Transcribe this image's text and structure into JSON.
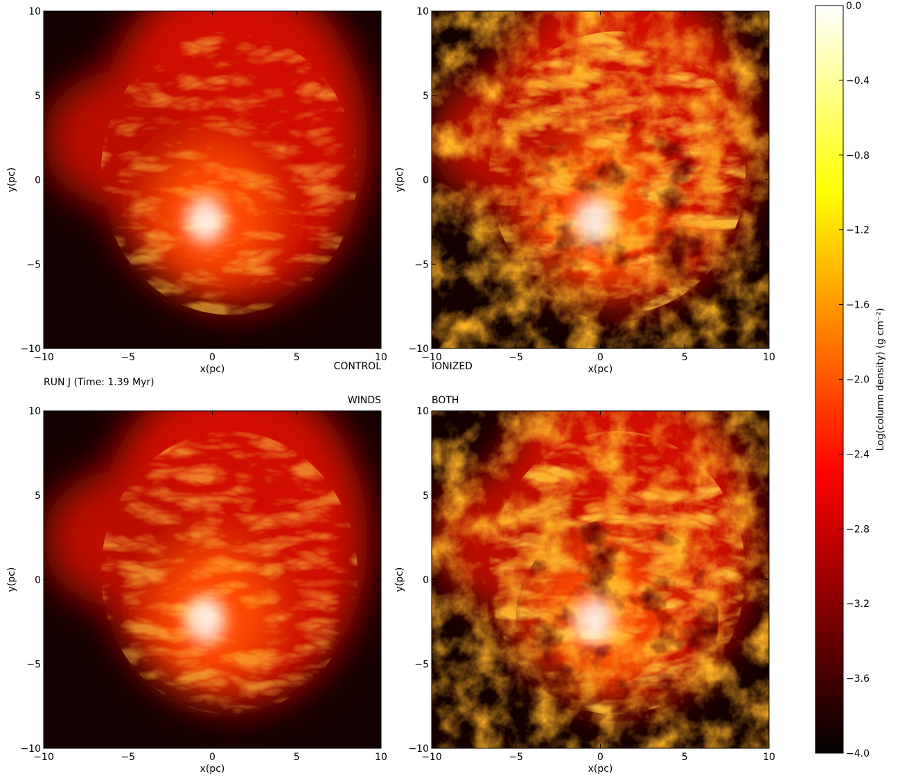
{
  "chart_data": [
    {
      "type": "image",
      "label": "CONTROL",
      "annotation": "RUN J (Time: 1.39 Myr)",
      "xlabel": "x(pc)",
      "ylabel": "y(pc)",
      "xlim": [
        -10,
        10
      ],
      "ylim": [
        -10,
        10
      ],
      "xticks": [
        {
          "value": -10,
          "label": "−10"
        },
        {
          "value": -5,
          "label": "−5"
        },
        0,
        5,
        10
      ],
      "yticks": [
        {
          "value": -10,
          "label": "−10"
        },
        {
          "value": -5,
          "label": "−5"
        },
        0,
        5,
        10
      ],
      "texture": "smooth"
    },
    {
      "type": "image",
      "label": "IONIZED",
      "xlabel": "x(pc)",
      "ylabel": "y(pc)",
      "xlim": [
        -10,
        10
      ],
      "ylim": [
        -10,
        10
      ],
      "xticks": [
        {
          "value": -10,
          "label": "−10"
        },
        {
          "value": -5,
          "label": "−5"
        },
        0,
        5,
        10
      ],
      "yticks": [
        {
          "value": -10,
          "label": "−10"
        },
        {
          "value": -5,
          "label": "−5"
        },
        0,
        5,
        10
      ],
      "texture": "clumpy"
    },
    {
      "type": "image",
      "label": "WINDS",
      "xlabel": "x(pc)",
      "ylabel": "y(pc)",
      "xlim": [
        -10,
        10
      ],
      "ylim": [
        -10,
        10
      ],
      "xticks": [
        {
          "value": -10,
          "label": "−10"
        },
        {
          "value": -5,
          "label": "−5"
        },
        0,
        5,
        10
      ],
      "yticks": [
        {
          "value": -10,
          "label": "−10"
        },
        {
          "value": -5,
          "label": "−5"
        },
        0,
        5,
        10
      ],
      "texture": "smooth"
    },
    {
      "type": "image",
      "label": "BOTH",
      "xlabel": "x(pc)",
      "ylabel": "y(pc)",
      "xlim": [
        -10,
        10
      ],
      "ylim": [
        -10,
        10
      ],
      "xticks": [
        {
          "value": -10,
          "label": "−10"
        },
        {
          "value": -5,
          "label": "−5"
        },
        0,
        5,
        10
      ],
      "yticks": [
        {
          "value": -10,
          "label": "−10"
        },
        {
          "value": -5,
          "label": "−5"
        },
        0,
        5,
        10
      ],
      "texture": "clumpy"
    },
    {
      "type": "colorbar",
      "label": "Log(column density) (g cm⁻²)",
      "colormap": "hot",
      "ylim": [
        -4,
        0
      ],
      "yticks": [
        {
          "value": 0,
          "label": "0.0"
        },
        {
          "value": -0.4,
          "label": "−0.4"
        },
        {
          "value": -0.8,
          "label": "−0.8"
        },
        {
          "value": -1.2,
          "label": "−1.2"
        },
        {
          "value": -1.6,
          "label": "−1.6"
        },
        {
          "value": -2,
          "label": "−2.0"
        },
        {
          "value": -2.4,
          "label": "−2.4"
        },
        {
          "value": -2.8,
          "label": "−2.8"
        },
        {
          "value": -3.2,
          "label": "−3.2"
        },
        {
          "value": -3.6,
          "label": "−3.6"
        },
        {
          "value": -4,
          "label": "−4.0"
        }
      ]
    }
  ]
}
